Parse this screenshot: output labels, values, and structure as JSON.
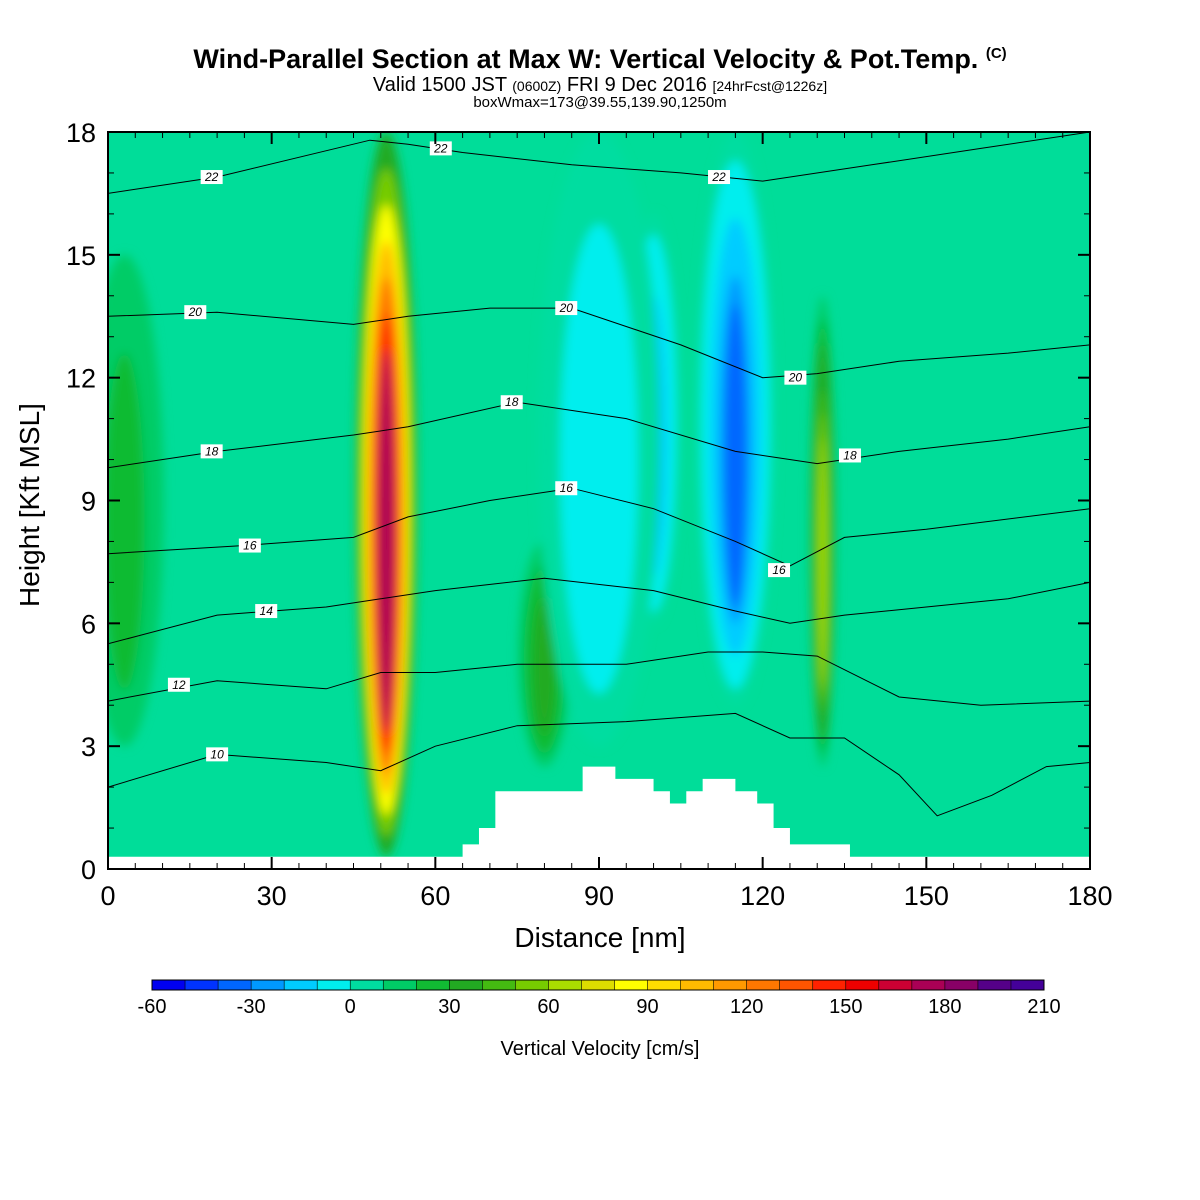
{
  "header": {
    "title": "Wind-Parallel Section at Max W: Vertical Velocity & Pot.Temp.",
    "copyright": "(C)",
    "valid_pre": "Valid 1500 JST",
    "valid_z": "(0600Z)",
    "valid_post": "FRI 9 Dec 2016",
    "forecast": "[24hrFcst@1226z]",
    "box_info": "boxWmax=173@39.55,139.90,1250m"
  },
  "chart_data": {
    "type": "heatmap",
    "xlabel": "Distance [nm]",
    "ylabel": "Height [Kft MSL]",
    "xlim": [
      0,
      180
    ],
    "ylim": [
      0,
      18
    ],
    "x_ticks": [
      "0",
      "30",
      "60",
      "90",
      "120",
      "150",
      "180"
    ],
    "y_ticks": [
      "0",
      "3",
      "6",
      "9",
      "12",
      "15",
      "18"
    ],
    "colorbar": {
      "label": "Vertical Velocity [cm/s]",
      "range": [
        -60,
        210
      ],
      "step": 10,
      "tick_labels": [
        "-60",
        "-30",
        "0",
        "30",
        "60",
        "90",
        "120",
        "150",
        "180",
        "210"
      ],
      "colors": [
        "#0000f0",
        "#0033ff",
        "#0066ff",
        "#0099ff",
        "#00ccff",
        "#00eeee",
        "#00dda0",
        "#00cc66",
        "#11bb33",
        "#22aa22",
        "#44bb11",
        "#77cc00",
        "#aadd00",
        "#dddd00",
        "#ffff00",
        "#ffdd00",
        "#ffbb00",
        "#ff9900",
        "#ff7700",
        "#ff5500",
        "#ff2200",
        "#ee0000",
        "#cc0033",
        "#aa0055",
        "#880066",
        "#550088",
        "#440099"
      ]
    },
    "w_features": [
      {
        "kind": "updraft",
        "x": 51,
        "z0": 0.3,
        "z1": 18,
        "width_nm": 7,
        "max_w": 200
      },
      {
        "kind": "updraft",
        "x": 131,
        "z0": 2.5,
        "z1": 14,
        "width_nm": 3,
        "max_w": 70
      },
      {
        "kind": "updraft",
        "x": 80,
        "z0": 2.5,
        "z1": 8,
        "width_nm": 6,
        "max_w": 40
      },
      {
        "kind": "updraft",
        "x": 3,
        "z0": 3,
        "z1": 15,
        "width_nm": 9,
        "max_w": 30
      },
      {
        "kind": "downdraft",
        "x": 115,
        "z0": 4,
        "z1": 18,
        "width_nm": 9,
        "max_w": -40
      },
      {
        "kind": "downdraft",
        "x": 100,
        "z0": 6,
        "z1": 16,
        "width_nm": 6,
        "max_w": -30
      },
      {
        "kind": "downdraft",
        "x": 90,
        "z0": 3,
        "z1": 18,
        "width_nm": 14,
        "max_w": -15
      }
    ],
    "terrain": {
      "x": [
        0,
        65,
        65,
        68,
        68,
        71,
        71,
        74,
        74,
        87,
        87,
        93,
        93,
        100,
        100,
        103,
        103,
        106,
        106,
        109,
        109,
        115,
        115,
        119,
        119,
        122,
        122,
        125,
        125,
        127,
        127,
        136,
        136,
        180
      ],
      "z": [
        0.3,
        0.3,
        0.6,
        0.6,
        1.0,
        1.0,
        1.9,
        1.9,
        1.9,
        1.9,
        2.5,
        2.5,
        2.2,
        2.2,
        1.9,
        1.9,
        1.6,
        1.6,
        1.9,
        1.9,
        2.2,
        2.2,
        1.9,
        1.9,
        1.6,
        1.6,
        1.0,
        1.0,
        0.6,
        0.6,
        0.6,
        0.6,
        0.3,
        0.3
      ]
    },
    "theta_contours": [
      {
        "label": "10",
        "points": [
          [
            0,
            2.0
          ],
          [
            20,
            2.8
          ],
          [
            40,
            2.6
          ],
          [
            50,
            2.4
          ],
          [
            60,
            3.0
          ],
          [
            75,
            3.5
          ],
          [
            95,
            3.6
          ],
          [
            115,
            3.8
          ],
          [
            125,
            3.2
          ],
          [
            135,
            3.2
          ],
          [
            145,
            2.3
          ],
          [
            152,
            1.3
          ],
          [
            162,
            1.8
          ],
          [
            172,
            2.5
          ],
          [
            180,
            2.6
          ]
        ],
        "label_at": [
          20,
          2.8
        ]
      },
      {
        "label": "12",
        "points": [
          [
            0,
            4.1
          ],
          [
            20,
            4.6
          ],
          [
            40,
            4.4
          ],
          [
            50,
            4.8
          ],
          [
            60,
            4.8
          ],
          [
            75,
            5.0
          ],
          [
            95,
            5.0
          ],
          [
            110,
            5.3
          ],
          [
            120,
            5.3
          ],
          [
            130,
            5.2
          ],
          [
            145,
            4.2
          ],
          [
            160,
            4.0
          ],
          [
            180,
            4.1
          ]
        ],
        "label_at": [
          13,
          4.5
        ]
      },
      {
        "label": "14",
        "points": [
          [
            0,
            5.5
          ],
          [
            20,
            6.2
          ],
          [
            40,
            6.4
          ],
          [
            50,
            6.6
          ],
          [
            60,
            6.8
          ],
          [
            80,
            7.1
          ],
          [
            100,
            6.8
          ],
          [
            115,
            6.3
          ],
          [
            125,
            6.0
          ],
          [
            135,
            6.2
          ],
          [
            150,
            6.4
          ],
          [
            165,
            6.6
          ],
          [
            180,
            7.0
          ]
        ],
        "label_at": [
          29,
          6.3
        ]
      },
      {
        "label": "16",
        "points": [
          [
            0,
            7.7
          ],
          [
            25,
            7.9
          ],
          [
            45,
            8.1
          ],
          [
            55,
            8.6
          ],
          [
            70,
            9.0
          ],
          [
            85,
            9.3
          ],
          [
            100,
            8.8
          ],
          [
            115,
            8.0
          ],
          [
            125,
            7.4
          ],
          [
            135,
            8.1
          ],
          [
            150,
            8.3
          ],
          [
            180,
            8.8
          ]
        ],
        "label_at": [
          26,
          7.9
        ]
      },
      {
        "label": "16",
        "points": [],
        "label_at": [
          84,
          9.3
        ]
      },
      {
        "label": "16",
        "points": [],
        "label_at": [
          123,
          7.3
        ]
      },
      {
        "label": "18",
        "points": [
          [
            0,
            9.8
          ],
          [
            20,
            10.2
          ],
          [
            45,
            10.6
          ],
          [
            55,
            10.8
          ],
          [
            75,
            11.4
          ],
          [
            95,
            11.0
          ],
          [
            115,
            10.2
          ],
          [
            130,
            9.9
          ],
          [
            145,
            10.2
          ],
          [
            165,
            10.5
          ],
          [
            180,
            10.8
          ]
        ],
        "label_at": [
          19,
          10.2
        ]
      },
      {
        "label": "18",
        "points": [],
        "label_at": [
          74,
          11.4
        ]
      },
      {
        "label": "18",
        "points": [],
        "label_at": [
          136,
          10.1
        ]
      },
      {
        "label": "20",
        "points": [
          [
            0,
            13.5
          ],
          [
            20,
            13.6
          ],
          [
            45,
            13.3
          ],
          [
            55,
            13.5
          ],
          [
            70,
            13.7
          ],
          [
            85,
            13.7
          ],
          [
            105,
            12.8
          ],
          [
            120,
            12.0
          ],
          [
            130,
            12.1
          ],
          [
            145,
            12.4
          ],
          [
            165,
            12.6
          ],
          [
            180,
            12.8
          ]
        ],
        "label_at": [
          16,
          13.6
        ]
      },
      {
        "label": "20",
        "points": [],
        "label_at": [
          84,
          13.7
        ]
      },
      {
        "label": "20",
        "points": [],
        "label_at": [
          126,
          12.0
        ]
      },
      {
        "label": "22",
        "points": [
          [
            0,
            16.5
          ],
          [
            20,
            16.9
          ],
          [
            48,
            17.8
          ],
          [
            55,
            17.7
          ],
          [
            65,
            17.5
          ],
          [
            85,
            17.2
          ],
          [
            105,
            17.0
          ],
          [
            120,
            16.8
          ],
          [
            140,
            17.2
          ],
          [
            160,
            17.6
          ],
          [
            180,
            18.0
          ]
        ],
        "label_at": [
          19,
          16.9
        ]
      },
      {
        "label": "22",
        "points": [],
        "label_at": [
          61,
          17.6
        ]
      },
      {
        "label": "22",
        "points": [],
        "label_at": [
          112,
          16.9
        ]
      }
    ]
  }
}
